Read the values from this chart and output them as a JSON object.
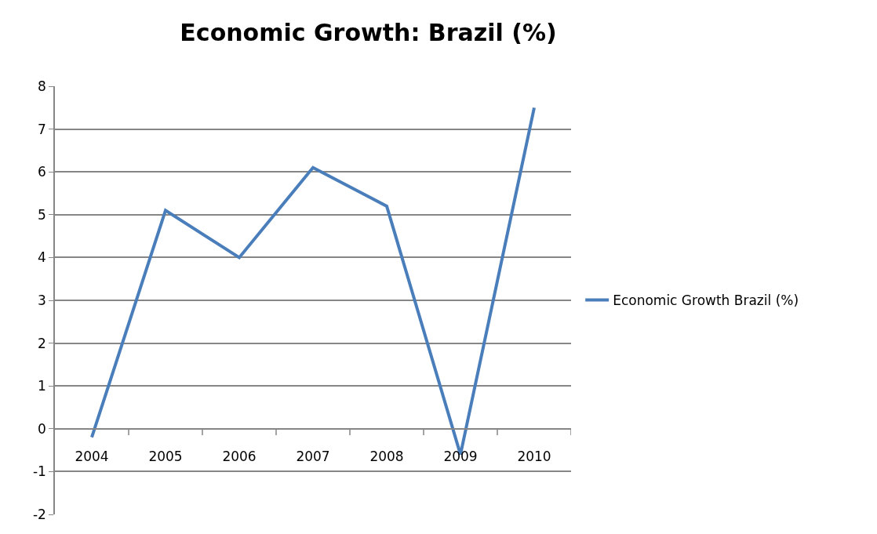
{
  "chart_data": {
    "type": "line",
    "title": "Economic Growth: Brazil (%)",
    "categories": [
      "2004",
      "2005",
      "2006",
      "2007",
      "2008",
      "2009",
      "2010"
    ],
    "series": [
      {
        "name": "Economic Growth Brazil (%)",
        "color": "#4a7ebb",
        "values": [
          -0.2,
          5.1,
          4.0,
          6.1,
          5.2,
          -0.6,
          7.5
        ]
      }
    ],
    "ylim": [
      -2,
      8
    ],
    "yticks": [
      -2,
      -1,
      0,
      1,
      2,
      3,
      4,
      5,
      6,
      7,
      8
    ],
    "grid": "y",
    "legend": "right",
    "marker": "none",
    "line_style": "solid"
  }
}
